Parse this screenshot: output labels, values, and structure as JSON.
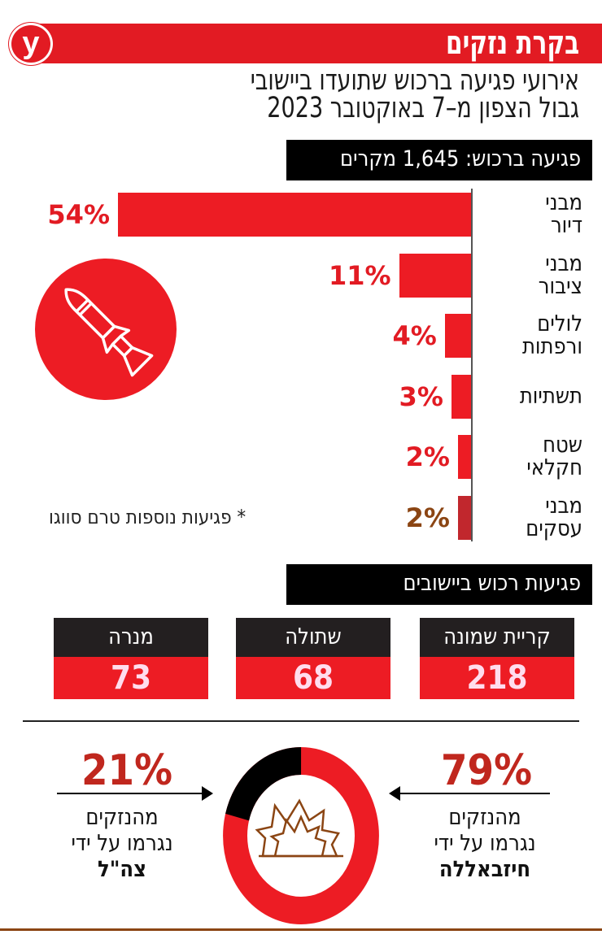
{
  "header": {
    "logo": "y",
    "title": "בקרת נזקים",
    "subtitle_line1": "אירועי פגיעה ברכוש שתועדו ביישובי",
    "subtitle_line2": "גבול הצפון מ–7 באוקטובר 2023",
    "accent_color": "#e21b23"
  },
  "section1": {
    "title": "פגיעה ברכוש: 1,645 מקרים",
    "footnote": "* פגיעות נוספות טרם סווגו",
    "icon": "rocket-icon"
  },
  "section2": {
    "title": "פגיעות רכוש ביישובים",
    "towns": [
      {
        "name": "קריית שמונה",
        "value": "218"
      },
      {
        "name": "שתולה",
        "value": "68"
      },
      {
        "name": "מנרה",
        "value": "73"
      }
    ]
  },
  "section3": {
    "left": {
      "pct": "21%",
      "line1": "מהנזקים",
      "line2": "נגרמו על ידי",
      "actor": "צה\"ל"
    },
    "right": {
      "pct": "79%",
      "line1": "מהנזקים",
      "line2": "נגרמו על ידי",
      "actor": "חיזבאללה"
    },
    "icon": "explosion-icon"
  },
  "chart_data": [
    {
      "type": "bar",
      "title": "פגיעה ברכוש: 1,645 מקרים",
      "orientation": "horizontal",
      "categories": [
        "מבני דיור",
        "מבני ציבור",
        "לולים ורפתות",
        "תשתיות",
        "שטח חקלאי",
        "מבני עסקים"
      ],
      "category_lines": [
        [
          "מבני",
          "דיור"
        ],
        [
          "מבני",
          "ציבור"
        ],
        [
          "לולים",
          "ורפתות"
        ],
        [
          "תשתיות"
        ],
        [
          "שטח",
          "חקלאי"
        ],
        [
          "מבני",
          "עסקים"
        ]
      ],
      "values": [
        54,
        11,
        4,
        3,
        2,
        2
      ],
      "labels": [
        "54%",
        "11%",
        "4%",
        "3%",
        "2%",
        "2%"
      ],
      "unit": "%",
      "color": "#ed1c24"
    },
    {
      "type": "bar",
      "title": "פגיעות רכוש ביישובים",
      "categories": [
        "קריית שמונה",
        "שתולה",
        "מנרה"
      ],
      "values": [
        218,
        68,
        73
      ]
    },
    {
      "type": "pie",
      "donut": true,
      "categories": [
        "חיזבאללה",
        "צה\"ל"
      ],
      "values": [
        79,
        21
      ],
      "colors": [
        "#ed1c24",
        "#000000"
      ]
    }
  ]
}
